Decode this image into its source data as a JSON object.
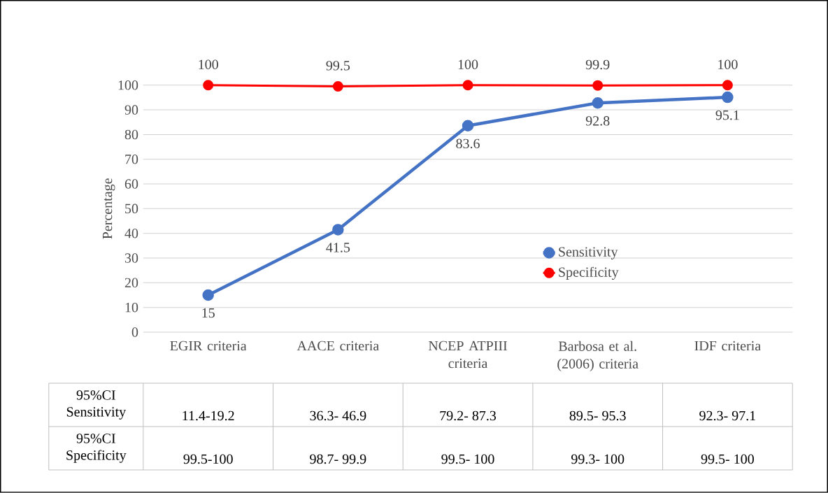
{
  "chart_data": {
    "type": "line",
    "ylabel": "Percentage",
    "categories": [
      "EGIR criteria",
      "AACE criteria",
      "NCEP ATPIII criteria",
      "Barbosa et al. (2006) criteria",
      "IDF criteria"
    ],
    "series": [
      {
        "name": "Sensitivity",
        "color": "#4472c4",
        "values": [
          15,
          41.5,
          83.6,
          92.8,
          95.1
        ]
      },
      {
        "name": "Specificity",
        "color": "#ff0000",
        "values": [
          100,
          99.5,
          100,
          99.9,
          100
        ]
      }
    ],
    "ylim": [
      0,
      100
    ],
    "yticks": [
      0,
      10,
      20,
      30,
      40,
      50,
      60,
      70,
      80,
      90,
      100
    ],
    "grid": "y",
    "legend": "right",
    "marker": "circle",
    "line_style": "solid",
    "data_labels": true,
    "annotations": [
      "95%CI Sensitivity",
      "11.4-19.2",
      "36.3- 46.9",
      "79.2- 87.3",
      "89.5- 95.3",
      "92.3- 97.1",
      "95%CI Specificity",
      "99.5-100",
      "98.7- 99.9",
      "99.5- 100",
      "99.3- 100",
      "99.5- 100"
    ]
  }
}
